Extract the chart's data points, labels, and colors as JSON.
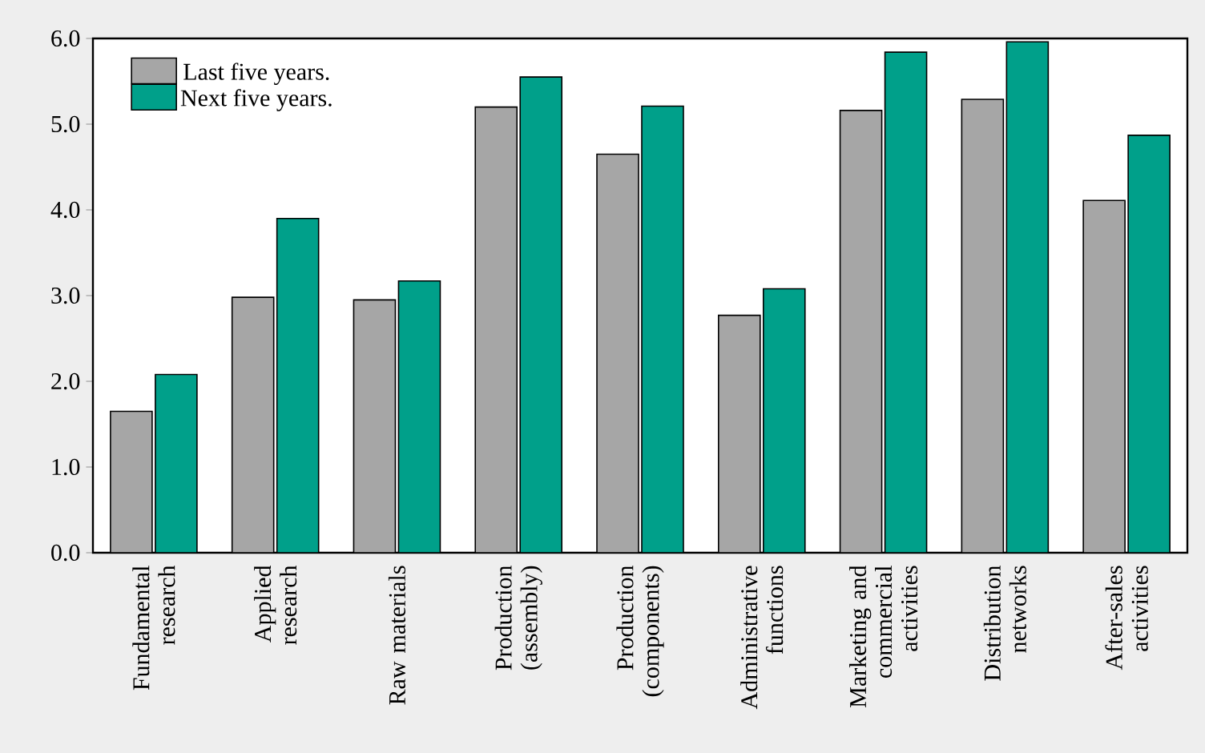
{
  "chart_data": {
    "type": "bar",
    "categories": [
      "Fundamental research",
      "Applied research",
      "Raw materials",
      "Production (assembly)",
      "Production (components)",
      "Administrative functions",
      "Marketing and commercial activities",
      "Distribution networks",
      "After-sales activities"
    ],
    "series": [
      {
        "name": "Last five years.",
        "color": "#a6a6a6",
        "values": [
          1.65,
          2.98,
          2.95,
          5.2,
          4.65,
          2.77,
          5.16,
          5.29,
          4.11
        ]
      },
      {
        "name": "Next five years.",
        "color": "#00a08a",
        "values": [
          2.08,
          3.9,
          3.17,
          5.55,
          5.21,
          3.08,
          5.84,
          5.96,
          4.87
        ]
      }
    ],
    "ylim": [
      0,
      6
    ],
    "yticks": [
      {
        "value": 0,
        "label": "0.0"
      },
      {
        "value": 1,
        "label": "1.0"
      },
      {
        "value": 2,
        "label": "2.0"
      },
      {
        "value": 3,
        "label": "3.0"
      },
      {
        "value": 4,
        "label": "4.0"
      },
      {
        "value": 5,
        "label": "5.0"
      },
      {
        "value": 6,
        "label": "6.0"
      }
    ],
    "legend": "top left"
  }
}
